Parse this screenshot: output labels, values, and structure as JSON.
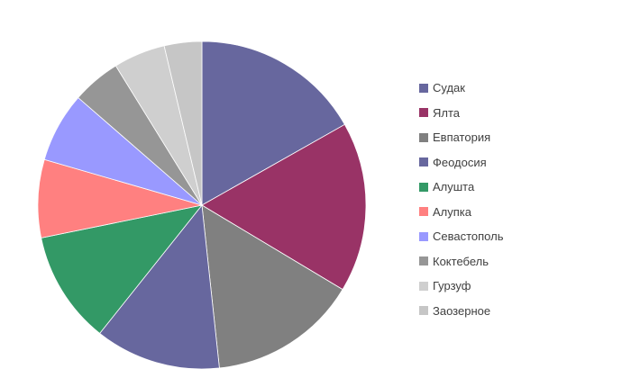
{
  "chart_data": {
    "type": "pie",
    "title": "",
    "legend_position": "right",
    "start_angle_deg": 0,
    "direction": "clockwise",
    "categories": [
      "Судак",
      "Ялта",
      "Евпатория",
      "Феодосия",
      "Алушта",
      "Алупка",
      "Севастополь",
      "Коктебель",
      "Гурзуф",
      "Заозерное"
    ],
    "values": [
      16.8,
      16.8,
      14.7,
      12.4,
      11.1,
      7.7,
      6.9,
      4.8,
      5.1,
      3.7
    ],
    "unit": "percent",
    "colors": [
      "#67679E",
      "#993366",
      "#808080",
      "#67679E",
      "#339966",
      "#FF8080",
      "#9999FF",
      "#969696",
      "#CFCFCF",
      "#C6C6C6"
    ],
    "background": "#FFFFFF",
    "slice_border_color": "#FFFFFF",
    "legend_text_color": "#404040"
  }
}
